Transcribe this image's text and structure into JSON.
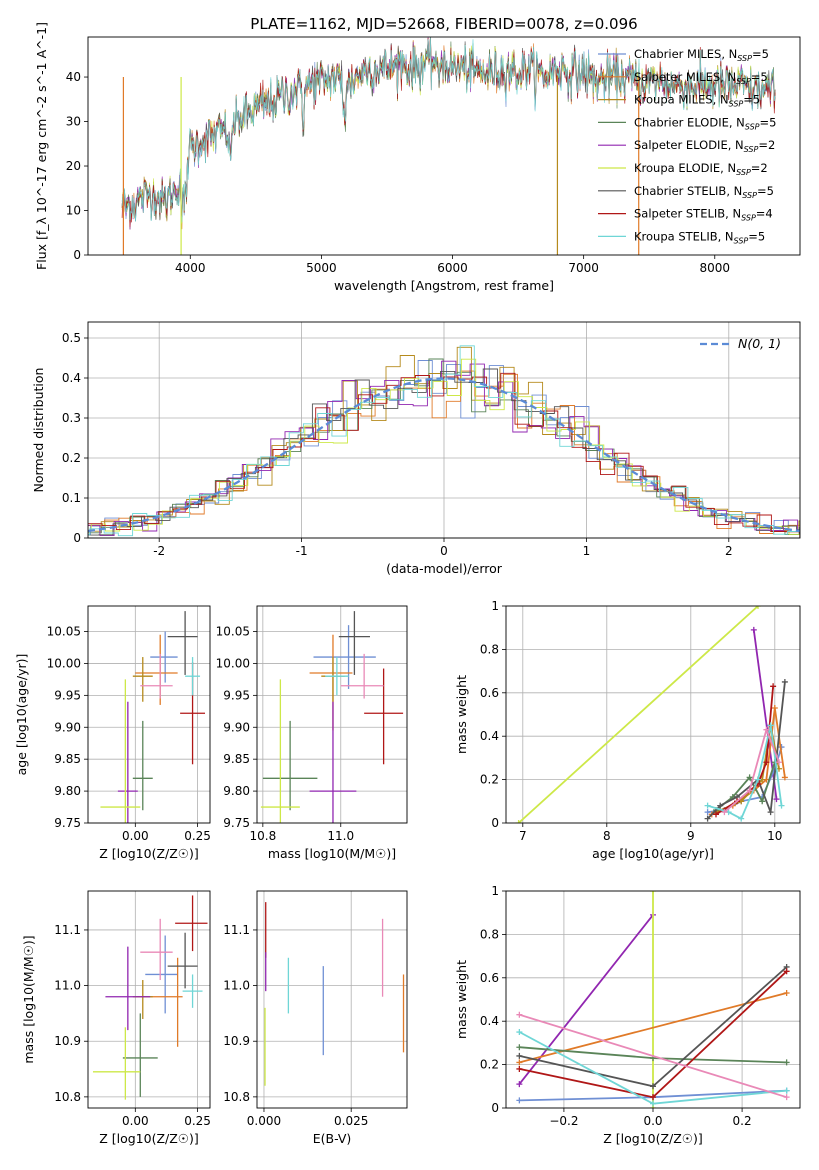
{
  "figure_title": "PLATE=1162, MJD=52668, FIBERID=0078, z=0.096",
  "palette": [
    "#6f8fd4",
    "#e07a28",
    "#b58a1c",
    "#5a8458",
    "#9126b0",
    "#cde848",
    "#555555",
    "#b01717",
    "#6fd6d6",
    "#e989b7"
  ],
  "chart_data": [
    {
      "id": "spectrum",
      "type": "line",
      "title": "PLATE=1162, MJD=52668, FIBERID=0078, z=0.096",
      "xlabel": "wavelength [Angstrom, rest frame]",
      "ylabel": "Flux [f_λ 10^-17 erg cm^-2 s^-1 A^-1]",
      "xlim": [
        3220,
        8650
      ],
      "ylim": [
        0,
        49
      ],
      "xticks": [
        4000,
        5000,
        6000,
        7000,
        8000
      ],
      "yticks": [
        0,
        10,
        20,
        30,
        40
      ],
      "grid": false,
      "legend": "upper right",
      "x": [
        3500,
        3600,
        3700,
        3800,
        3900,
        4000,
        4100,
        4200,
        4300,
        4400,
        4500,
        4600,
        4700,
        4800,
        4900,
        5000,
        5100,
        5200,
        5300,
        5400,
        5500,
        5600,
        5700,
        5800,
        5900,
        6000,
        6100,
        6200,
        6300,
        6400,
        6500,
        6600,
        6700,
        6800,
        6900,
        7000,
        7100,
        7200,
        7300,
        7400,
        7500,
        7600,
        7700,
        7800,
        7900,
        8000,
        8100,
        8200,
        8300,
        8400
      ],
      "y": [
        11,
        12,
        14,
        12,
        15,
        24,
        26,
        27,
        29,
        31,
        33,
        34,
        36,
        37,
        38,
        39,
        40,
        38,
        41,
        42,
        42,
        43,
        42,
        43,
        44,
        42,
        42,
        41,
        41,
        42,
        41,
        42,
        40,
        42,
        41,
        41,
        39,
        40,
        40,
        39,
        39,
        39,
        38,
        38,
        38,
        38,
        38,
        38,
        37,
        37
      ],
      "series": [
        {
          "name": "Chabrier MILES",
          "nssp": "5",
          "color": "#6f8fd4"
        },
        {
          "name": "Salpeter MILES",
          "nssp": "5",
          "color": "#e07a28"
        },
        {
          "name": "Kroupa MILES",
          "nssp": "5",
          "color": "#b58a1c"
        },
        {
          "name": "Chabrier ELODIE",
          "nssp": "5",
          "color": "#5a8458"
        },
        {
          "name": "Salpeter ELODIE",
          "nssp": "2",
          "color": "#9126b0"
        },
        {
          "name": "Kroupa ELODIE",
          "nssp": "2",
          "color": "#cde848"
        },
        {
          "name": "Chabrier STELIB",
          "nssp": "5",
          "color": "#555555"
        },
        {
          "name": "Salpeter STELIB",
          "nssp": "4",
          "color": "#b01717"
        },
        {
          "name": "Kroupa STELIB",
          "nssp": "5",
          "color": "#6fd6d6"
        }
      ],
      "drops": [
        {
          "x": 3490,
          "color": "#e07a28"
        },
        {
          "x": 3930,
          "color": "#cde848"
        },
        {
          "x": 6800,
          "color": "#b58a1c"
        },
        {
          "x": 7420,
          "color": "#e07a28"
        }
      ]
    },
    {
      "id": "residuals",
      "type": "histogram",
      "xlabel": "(data-model)/error",
      "ylabel": "Normed distribution",
      "xlim": [
        -2.5,
        2.5
      ],
      "ylim": [
        0,
        0.54
      ],
      "xticks": [
        -2,
        -1,
        0,
        1,
        2
      ],
      "yticks": [
        0.0,
        0.1,
        0.2,
        0.3,
        0.4,
        0.5
      ],
      "grid": true,
      "legend": "upper right",
      "reference_label": "N(0, 1)",
      "bin_width": 0.1
    },
    {
      "id": "age_vs_Z",
      "type": "scatter",
      "xlabel": "Z [log10(Z/Z☉)]",
      "ylabel": "age [log10(age/yr)]",
      "xlim": [
        -0.19,
        0.3
      ],
      "ylim": [
        9.75,
        10.09
      ],
      "xticks": [
        0.0,
        0.25
      ],
      "xtick_labels": [
        "0.00",
        "0.25"
      ],
      "yticks": [
        9.75,
        9.8,
        9.85,
        9.9,
        9.95,
        10.0,
        10.05
      ],
      "ytick_labels": [
        "9.75",
        "9.80",
        "9.85",
        "9.90",
        "9.95",
        "10.00",
        "10.05"
      ],
      "points": [
        {
          "x": 0.12,
          "y": 10.01,
          "xerr": [
            0.06,
            0.05
          ],
          "yerr": [
            0.04,
            0.04
          ],
          "color": "#6f8fd4"
        },
        {
          "x": 0.1,
          "y": 9.985,
          "xerr": [
            0.1,
            0.07
          ],
          "yerr": [
            0.05,
            0.06
          ],
          "color": "#e07a28"
        },
        {
          "x": 0.03,
          "y": 9.98,
          "xerr": [
            0.04,
            0.04
          ],
          "yerr": [
            0.04,
            0.03
          ],
          "color": "#b58a1c"
        },
        {
          "x": 0.03,
          "y": 9.82,
          "xerr": [
            0.04,
            0.04
          ],
          "yerr": [
            0.05,
            0.09
          ],
          "color": "#5a8458"
        },
        {
          "x": -0.03,
          "y": 9.8,
          "xerr": [
            0.04,
            0.04
          ],
          "yerr": [
            0.05,
            0.14
          ],
          "color": "#9126b0"
        },
        {
          "x": -0.04,
          "y": 9.775,
          "xerr": [
            0.1,
            0.06
          ],
          "yerr": [
            0.03,
            0.2
          ],
          "color": "#cde848"
        },
        {
          "x": 0.2,
          "y": 10.042,
          "xerr": [
            0.07,
            0.05
          ],
          "yerr": [
            0.06,
            0.04
          ],
          "color": "#555555"
        },
        {
          "x": 0.23,
          "y": 9.922,
          "xerr": [
            0.05,
            0.05
          ],
          "yerr": [
            0.08,
            0.08
          ],
          "color": "#b01717"
        },
        {
          "x": 0.23,
          "y": 9.98,
          "xerr": [
            0.03,
            0.03
          ],
          "yerr": [
            0.03,
            0.03
          ],
          "color": "#6fd6d6"
        },
        {
          "x": 0.1,
          "y": 9.965,
          "xerr": [
            0.08,
            0.05
          ],
          "yerr": [
            0.02,
            0.05
          ],
          "color": "#e989b7"
        }
      ]
    },
    {
      "id": "age_vs_mass",
      "type": "scatter",
      "xlabel": "mass [log10(M/M☉)]",
      "ylabel": "",
      "xlim": [
        10.785,
        11.17
      ],
      "ylim": [
        9.75,
        10.09
      ],
      "xticks": [
        10.8,
        11.0
      ],
      "xtick_labels": [
        "10.8",
        "11.0"
      ],
      "yticks": [
        9.75,
        9.8,
        9.85,
        9.9,
        9.95,
        10.0,
        10.05
      ],
      "ytick_labels": [
        "9.75",
        "9.80",
        "9.85",
        "9.90",
        "9.95",
        "10.00",
        "10.05"
      ],
      "points": [
        {
          "x": 11.02,
          "y": 10.01,
          "xerr": [
            0.09,
            0.07
          ],
          "yerr": [
            0.05,
            0.05
          ],
          "color": "#6f8fd4"
        },
        {
          "x": 10.98,
          "y": 9.985,
          "xerr": [
            0.06,
            0.05
          ],
          "yerr": [
            0.09,
            0.06
          ],
          "color": "#e07a28"
        },
        {
          "x": 10.98,
          "y": 9.98,
          "xerr": [
            0.03,
            0.03
          ],
          "yerr": [
            0.04,
            0.03
          ],
          "color": "#b58a1c"
        },
        {
          "x": 10.87,
          "y": 9.82,
          "xerr": [
            0.07,
            0.07
          ],
          "yerr": [
            0.05,
            0.09
          ],
          "color": "#5a8458"
        },
        {
          "x": 10.98,
          "y": 9.8,
          "xerr": [
            0.06,
            0.06
          ],
          "yerr": [
            0.05,
            0.14
          ],
          "color": "#9126b0"
        },
        {
          "x": 10.845,
          "y": 9.775,
          "xerr": [
            0.05,
            0.05
          ],
          "yerr": [
            0.03,
            0.2
          ],
          "color": "#cde848"
        },
        {
          "x": 11.035,
          "y": 10.042,
          "xerr": [
            0.04,
            0.04
          ],
          "yerr": [
            0.06,
            0.04
          ],
          "color": "#555555"
        },
        {
          "x": 11.11,
          "y": 9.922,
          "xerr": [
            0.05,
            0.05
          ],
          "yerr": [
            0.08,
            0.07
          ],
          "color": "#b01717"
        },
        {
          "x": 10.99,
          "y": 9.98,
          "xerr": [
            0.03,
            0.03
          ],
          "yerr": [
            0.03,
            0.03
          ],
          "color": "#6fd6d6"
        },
        {
          "x": 11.06,
          "y": 9.965,
          "xerr": [
            0.06,
            0.05
          ],
          "yerr": [
            0.02,
            0.05
          ],
          "color": "#e989b7"
        }
      ]
    },
    {
      "id": "weight_vs_age",
      "type": "line",
      "xlabel": "age [log10(age/yr)]",
      "ylabel": "mass weight",
      "xlim": [
        6.8,
        10.3
      ],
      "ylim": [
        0,
        1.0
      ],
      "xticks": [
        7,
        8,
        9,
        10
      ],
      "yticks": [
        0.0,
        0.2,
        0.4,
        0.6,
        0.8,
        1.0
      ],
      "series": [
        {
          "color": "#cde848",
          "x": [
            6.95,
            9.8
          ],
          "y": [
            0.0,
            1.0
          ]
        },
        {
          "color": "#9126b0",
          "x": [
            9.75,
            10.02
          ],
          "y": [
            0.89,
            0.11
          ]
        },
        {
          "color": "#6f8fd4",
          "x": [
            9.2,
            9.4,
            9.6,
            9.85,
            10.0,
            10.08
          ],
          "y": [
            0.05,
            0.06,
            0.1,
            0.12,
            0.25,
            0.35
          ]
        },
        {
          "color": "#e07a28",
          "x": [
            9.25,
            9.5,
            9.75,
            9.9,
            10.0,
            10.12
          ],
          "y": [
            0.04,
            0.08,
            0.15,
            0.2,
            0.53,
            0.21
          ]
        },
        {
          "color": "#b58a1c",
          "x": [
            9.3,
            9.6,
            9.85,
            9.95,
            10.05
          ],
          "y": [
            0.05,
            0.1,
            0.2,
            0.45,
            0.25
          ]
        },
        {
          "color": "#5a8458",
          "x": [
            9.3,
            9.5,
            9.7,
            9.85,
            10.0
          ],
          "y": [
            0.06,
            0.12,
            0.21,
            0.1,
            0.28
          ]
        },
        {
          "color": "#555555",
          "x": [
            9.2,
            9.35,
            9.55,
            9.8,
            9.95,
            10.12
          ],
          "y": [
            0.02,
            0.08,
            0.12,
            0.2,
            0.05,
            0.65
          ]
        },
        {
          "color": "#b01717",
          "x": [
            9.3,
            9.55,
            9.8,
            9.9,
            9.98
          ],
          "y": [
            0.04,
            0.1,
            0.18,
            0.28,
            0.63
          ]
        },
        {
          "color": "#6fd6d6",
          "x": [
            9.2,
            9.45,
            9.6,
            9.8,
            9.95,
            10.08
          ],
          "y": [
            0.08,
            0.05,
            0.02,
            0.2,
            0.45,
            0.08
          ]
        },
        {
          "color": "#e989b7",
          "x": [
            9.4,
            9.7,
            9.9,
            10.05
          ],
          "y": [
            0.05,
            0.15,
            0.43,
            0.28
          ]
        }
      ]
    },
    {
      "id": "mass_vs_Z",
      "type": "scatter",
      "xlabel": "Z [log10(Z/Z☉)]",
      "ylabel": "mass [log10(M/M☉)]",
      "xlim": [
        -0.19,
        0.3
      ],
      "ylim": [
        10.78,
        11.17
      ],
      "xticks": [
        0.0,
        0.25
      ],
      "xtick_labels": [
        "0.00",
        "0.25"
      ],
      "yticks": [
        10.8,
        10.9,
        11.0,
        11.1
      ],
      "ytick_labels": [
        "10.8",
        "10.9",
        "11.0",
        "11.1"
      ],
      "points": [
        {
          "x": 0.12,
          "y": 11.02,
          "xerr": [
            0.08,
            0.05
          ],
          "yerr": [
            0.07,
            0.07
          ],
          "color": "#6f8fd4"
        },
        {
          "x": 0.17,
          "y": 10.98,
          "xerr": [
            0.17,
            0.02
          ],
          "yerr": [
            0.09,
            0.07
          ],
          "color": "#e07a28"
        },
        {
          "x": 0.03,
          "y": 10.98,
          "xerr": [
            0.04,
            0.04
          ],
          "yerr": [
            0.04,
            0.03
          ],
          "color": "#b58a1c"
        },
        {
          "x": 0.02,
          "y": 10.87,
          "xerr": [
            0.07,
            0.07
          ],
          "yerr": [
            0.07,
            0.08
          ],
          "color": "#5a8458"
        },
        {
          "x": -0.03,
          "y": 10.98,
          "xerr": [
            0.09,
            0.09
          ],
          "yerr": [
            0.06,
            0.09
          ],
          "color": "#9126b0"
        },
        {
          "x": -0.04,
          "y": 10.845,
          "xerr": [
            0.13,
            0.06
          ],
          "yerr": [
            0.05,
            0.08
          ],
          "color": "#cde848"
        },
        {
          "x": 0.2,
          "y": 11.035,
          "xerr": [
            0.07,
            0.05
          ],
          "yerr": [
            0.04,
            0.06
          ],
          "color": "#555555"
        },
        {
          "x": 0.23,
          "y": 11.112,
          "xerr": [
            0.07,
            0.06
          ],
          "yerr": [
            0.05,
            0.05
          ],
          "color": "#b01717"
        },
        {
          "x": 0.23,
          "y": 10.99,
          "xerr": [
            0.04,
            0.04
          ],
          "yerr": [
            0.03,
            0.03
          ],
          "color": "#6fd6d6"
        },
        {
          "x": 0.1,
          "y": 11.06,
          "xerr": [
            0.08,
            0.05
          ],
          "yerr": [
            0.05,
            0.06
          ],
          "color": "#e989b7"
        }
      ]
    },
    {
      "id": "mass_vs_EBV",
      "type": "scatter",
      "xlabel": "E(B-V)",
      "ylabel": "",
      "xlim": [
        -0.002,
        0.041
      ],
      "ylim": [
        10.78,
        11.17
      ],
      "xticks": [
        0.0,
        0.025
      ],
      "xtick_labels": [
        "0.000",
        "0.025"
      ],
      "yticks": [
        10.8,
        10.9,
        11.0,
        11.1
      ],
      "ytick_labels": [
        "10.8",
        "10.9",
        "11.0",
        "11.1"
      ],
      "points": [
        {
          "x": 0.0005,
          "y": 11.1,
          "yerr": [
            0.05,
            0.05
          ],
          "color": "#b01717"
        },
        {
          "x": 0.0005,
          "y": 11.03,
          "yerr": [
            0.04,
            0.03
          ],
          "color": "#9126b0"
        },
        {
          "x": 0.0003,
          "y": 10.89,
          "yerr": [
            0.07,
            0.07
          ],
          "color": "#cde848"
        },
        {
          "x": 0.007,
          "y": 11.0,
          "yerr": [
            0.05,
            0.05
          ],
          "color": "#6fd6d6"
        },
        {
          "x": 0.017,
          "y": 10.955,
          "yerr": [
            0.08,
            0.08
          ],
          "color": "#6f8fd4"
        },
        {
          "x": 0.034,
          "y": 11.05,
          "yerr": [
            0.07,
            0.07
          ],
          "color": "#e989b7"
        },
        {
          "x": 0.04,
          "y": 10.95,
          "yerr": [
            0.07,
            0.07
          ],
          "color": "#e07a28"
        }
      ]
    },
    {
      "id": "weight_vs_Z",
      "type": "line",
      "xlabel": "Z [log10(Z/Z☉)]",
      "ylabel": "mass weight",
      "xlim": [
        -0.33,
        0.33
      ],
      "ylim": [
        0,
        1.0
      ],
      "xticks": [
        -0.2,
        0.0,
        0.2
      ],
      "xtick_labels": [
        "−0.2",
        "0.0",
        "0.2"
      ],
      "yticks": [
        0.0,
        0.2,
        0.4,
        0.6,
        0.8,
        1.0
      ],
      "series": [
        {
          "color": "#9126b0",
          "x": [
            -0.3,
            0.0
          ],
          "y": [
            0.11,
            0.89
          ]
        },
        {
          "color": "#cde848",
          "x": [
            0.0,
            0.0
          ],
          "y": [
            0.0,
            1.0
          ]
        },
        {
          "color": "#6f8fd4",
          "x": [
            -0.3,
            0.0,
            0.3
          ],
          "y": [
            0.035,
            0.05,
            0.08
          ]
        },
        {
          "color": "#e07a28",
          "x": [
            -0.3,
            0.3
          ],
          "y": [
            0.21,
            0.53
          ]
        },
        {
          "color": "#5a8458",
          "x": [
            -0.3,
            0.0,
            0.3
          ],
          "y": [
            0.28,
            0.23,
            0.21
          ]
        },
        {
          "color": "#555555",
          "x": [
            -0.3,
            0.0,
            0.3
          ],
          "y": [
            0.24,
            0.1,
            0.65
          ]
        },
        {
          "color": "#b01717",
          "x": [
            -0.3,
            0.0,
            0.3
          ],
          "y": [
            0.18,
            0.05,
            0.63
          ]
        },
        {
          "color": "#6fd6d6",
          "x": [
            -0.3,
            0.0,
            0.3
          ],
          "y": [
            0.35,
            0.02,
            0.08
          ]
        },
        {
          "color": "#e989b7",
          "x": [
            -0.3,
            0.3
          ],
          "y": [
            0.43,
            0.05
          ]
        }
      ]
    }
  ]
}
